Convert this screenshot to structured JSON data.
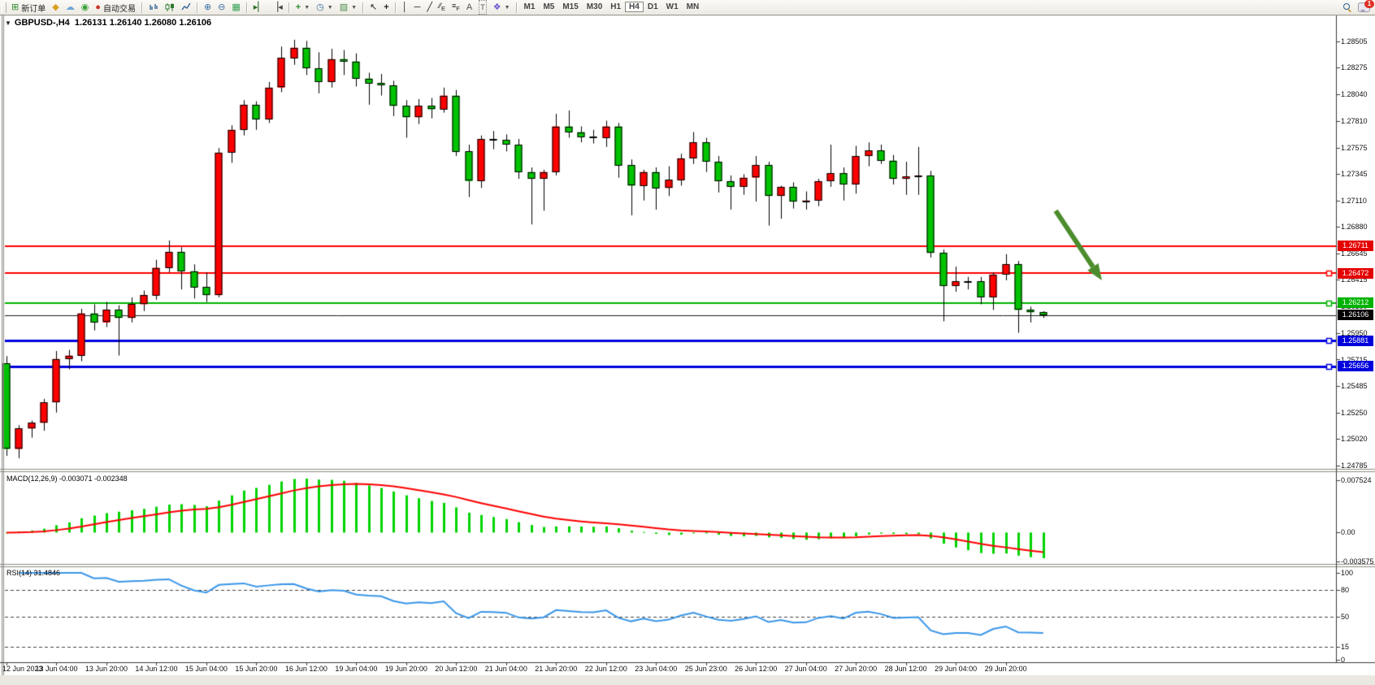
{
  "toolbar": {
    "new_order_label": "新订单",
    "autotrading_label": "自动交易",
    "timeframes": [
      "M1",
      "M5",
      "M15",
      "M30",
      "H1",
      "H4",
      "D1",
      "W1",
      "MN"
    ],
    "active_timeframe": "H4",
    "notification_count": "1"
  },
  "chart": {
    "symbol_title": "GBPUSD-,H4",
    "ohlc_text": "1.26131 1.26140 1.26080 1.26106",
    "background": "#ffffff",
    "bull_color": "#fe0000",
    "bear_color": "#00c300",
    "wick_color": "#000000"
  },
  "price_axis": {
    "ticks": [
      "1.28505",
      "1.28275",
      "1.28040",
      "1.27810",
      "1.27575",
      "1.27345",
      "1.27110",
      "1.26880",
      "1.26645",
      "1.26415",
      "1.26180",
      "1.25950",
      "1.25715",
      "1.25485",
      "1.25250",
      "1.25020",
      "1.24785"
    ],
    "badges": [
      {
        "text": "1.26711",
        "color": "#e40000"
      },
      {
        "text": "1.26472",
        "color": "#e40000"
      },
      {
        "text": "1.26212",
        "color": "#00b300"
      },
      {
        "text": "1.26106",
        "color": "#000000"
      },
      {
        "text": "1.25881",
        "color": "#0000dd"
      },
      {
        "text": "1.25656",
        "color": "#0000dd"
      }
    ]
  },
  "macd_pane": {
    "label": "MACD(12,26,9) -0.003071 -0.002348",
    "scale_labels": [
      {
        "text": "0.007524",
        "value": 0.007524
      },
      {
        "text": "0.00",
        "value": 0
      },
      {
        "text": "-0.003575",
        "value": -0.003575
      }
    ]
  },
  "rsi_pane": {
    "label": "RSI(14) 31.4846",
    "scale_labels": [
      {
        "text": "100",
        "value": 100
      },
      {
        "text": "80",
        "value": 80
      },
      {
        "text": "50",
        "value": 50
      },
      {
        "text": "15",
        "value": 15
      },
      {
        "text": "0",
        "value": 0
      }
    ],
    "levels": [
      80,
      50,
      15
    ]
  },
  "chart_data": {
    "type": "candlestick",
    "symbol": "GBPUSD-",
    "timeframe": "H4",
    "title": "GBPUSD-,H4 1.26131 1.26140 1.26080 1.26106",
    "current_bar": {
      "open": 1.26131,
      "high": 1.2614,
      "low": 1.2608,
      "close": 1.26106
    },
    "price_axis_range": {
      "top": 1.28505,
      "bottom": 1.24785
    },
    "x_labels": [
      "12 Jun 2023",
      "13 Jun 04:00",
      "13 Jun 20:00",
      "14 Jun 12:00",
      "15 Jun 04:00",
      "15 Jun 20:00",
      "16 Jun 12:00",
      "19 Jun 04:00",
      "19 Jun 20:00",
      "20 Jun 12:00",
      "21 Jun 04:00",
      "21 Jun 20:00",
      "22 Jun 12:00",
      "23 Jun 04:00",
      "25 Jun 23:00",
      "26 Jun 12:00",
      "27 Jun 04:00",
      "27 Jun 20:00",
      "28 Jun 12:00",
      "29 Jun 04:00",
      "29 Jun 20:00"
    ],
    "label_every_n_bars": 4,
    "candles_format": [
      "open",
      "high",
      "low",
      "close"
    ],
    "candles": [
      [
        1.2568,
        1.25745,
        1.2487,
        1.2493
      ],
      [
        1.2493,
        1.2514,
        1.2485,
        1.2511
      ],
      [
        1.2511,
        1.2518,
        1.2503,
        1.2516
      ],
      [
        1.2516,
        1.2537,
        1.2509,
        1.2534
      ],
      [
        1.2534,
        1.2579,
        1.2525,
        1.2572
      ],
      [
        1.2572,
        1.258,
        1.2563,
        1.2575
      ],
      [
        1.2575,
        1.2616,
        1.257,
        1.2612
      ],
      [
        1.2612,
        1.262,
        1.2597,
        1.2604
      ],
      [
        1.2604,
        1.2622,
        1.26,
        1.2615
      ],
      [
        1.2615,
        1.2619,
        1.2575,
        1.2608
      ],
      [
        1.2608,
        1.2626,
        1.2604,
        1.262
      ],
      [
        1.262,
        1.2632,
        1.2614,
        1.2628
      ],
      [
        1.2628,
        1.2659,
        1.2624,
        1.2652
      ],
      [
        1.2652,
        1.2676,
        1.2648,
        1.2666
      ],
      [
        1.2666,
        1.267,
        1.2633,
        1.2649
      ],
      [
        1.2649,
        1.2655,
        1.2625,
        1.2635
      ],
      [
        1.2635,
        1.2648,
        1.2622,
        1.2628
      ],
      [
        1.2628,
        1.2757,
        1.2626,
        1.2753
      ],
      [
        1.2753,
        1.2777,
        1.2744,
        1.2773
      ],
      [
        1.2773,
        1.2799,
        1.2768,
        1.2795
      ],
      [
        1.2795,
        1.2798,
        1.2773,
        1.2782
      ],
      [
        1.2782,
        1.2815,
        1.2779,
        1.281
      ],
      [
        1.281,
        1.2846,
        1.2806,
        1.2836
      ],
      [
        1.2836,
        1.2852,
        1.283,
        1.2845
      ],
      [
        1.2845,
        1.2851,
        1.2821,
        1.2827
      ],
      [
        1.2827,
        1.2841,
        1.2805,
        1.2815
      ],
      [
        1.2815,
        1.2844,
        1.281,
        1.2835
      ],
      [
        1.2835,
        1.2843,
        1.2821,
        1.2833
      ],
      [
        1.2833,
        1.284,
        1.2811,
        1.2818
      ],
      [
        1.2818,
        1.2823,
        1.2795,
        1.2814
      ],
      [
        1.2814,
        1.2822,
        1.2803,
        1.2812
      ],
      [
        1.2812,
        1.2816,
        1.2785,
        1.2794
      ],
      [
        1.2794,
        1.2799,
        1.2766,
        1.2784
      ],
      [
        1.2784,
        1.28,
        1.2778,
        1.2794
      ],
      [
        1.2794,
        1.2801,
        1.2783,
        1.2791
      ],
      [
        1.2791,
        1.281,
        1.2788,
        1.2803
      ],
      [
        1.2803,
        1.2808,
        1.275,
        1.2754
      ],
      [
        1.2754,
        1.276,
        1.2714,
        1.2728
      ],
      [
        1.2728,
        1.2768,
        1.2722,
        1.2765
      ],
      [
        1.2765,
        1.2772,
        1.2756,
        1.2764
      ],
      [
        1.2764,
        1.2769,
        1.2754,
        1.276
      ],
      [
        1.276,
        1.2765,
        1.273,
        1.2736
      ],
      [
        1.2736,
        1.274,
        1.269,
        1.273
      ],
      [
        1.273,
        1.2738,
        1.2702,
        1.2736
      ],
      [
        1.2736,
        1.2787,
        1.2733,
        1.2776
      ],
      [
        1.2776,
        1.279,
        1.2766,
        1.2771
      ],
      [
        1.2771,
        1.2776,
        1.2762,
        1.2767
      ],
      [
        1.2767,
        1.2773,
        1.2761,
        1.2766
      ],
      [
        1.2766,
        1.2781,
        1.2758,
        1.2776
      ],
      [
        1.2776,
        1.2779,
        1.2731,
        1.2742
      ],
      [
        1.2742,
        1.2747,
        1.2698,
        1.2724
      ],
      [
        1.2724,
        1.2738,
        1.2711,
        1.2736
      ],
      [
        1.2736,
        1.274,
        1.2703,
        1.2722
      ],
      [
        1.2722,
        1.2741,
        1.2715,
        1.2729
      ],
      [
        1.2729,
        1.2752,
        1.2724,
        1.2748
      ],
      [
        1.2748,
        1.2771,
        1.2743,
        1.2762
      ],
      [
        1.2762,
        1.2766,
        1.2736,
        1.2745
      ],
      [
        1.2745,
        1.275,
        1.2718,
        1.2728
      ],
      [
        1.2728,
        1.2733,
        1.2703,
        1.2723
      ],
      [
        1.2723,
        1.2734,
        1.2716,
        1.2731
      ],
      [
        1.2731,
        1.275,
        1.271,
        1.2742
      ],
      [
        1.2742,
        1.2745,
        1.2689,
        1.2715
      ],
      [
        1.2715,
        1.2724,
        1.2695,
        1.2723
      ],
      [
        1.2723,
        1.2727,
        1.2704,
        1.271
      ],
      [
        1.271,
        1.2719,
        1.2703,
        1.2711
      ],
      [
        1.2711,
        1.273,
        1.2706,
        1.2728
      ],
      [
        1.2728,
        1.276,
        1.2723,
        1.2735
      ],
      [
        1.2735,
        1.274,
        1.2711,
        1.2725
      ],
      [
        1.2725,
        1.2759,
        1.2717,
        1.275
      ],
      [
        1.275,
        1.2762,
        1.2741,
        1.2755
      ],
      [
        1.2755,
        1.276,
        1.2743,
        1.2746
      ],
      [
        1.2746,
        1.2751,
        1.2725,
        1.273
      ],
      [
        1.273,
        1.2745,
        1.2716,
        1.2732
      ],
      [
        1.2732,
        1.2758,
        1.2716,
        1.2733
      ],
      [
        1.2733,
        1.2737,
        1.2661,
        1.2665
      ],
      [
        1.2665,
        1.2668,
        1.2605,
        1.2636
      ],
      [
        1.2636,
        1.2653,
        1.2631,
        1.264
      ],
      [
        1.264,
        1.2644,
        1.2633,
        1.264
      ],
      [
        1.264,
        1.2644,
        1.262,
        1.2626
      ],
      [
        1.2626,
        1.2648,
        1.2615,
        1.2646
      ],
      [
        1.2646,
        1.2664,
        1.2641,
        1.2655
      ],
      [
        1.2655,
        1.2658,
        1.2595,
        1.2615
      ],
      [
        1.2615,
        1.2618,
        1.2604,
        1.2613
      ],
      [
        1.26131,
        1.2614,
        1.2608,
        1.26106
      ]
    ],
    "hlines": [
      {
        "price": 1.26711,
        "color": "#ff0000",
        "width": 2,
        "handle": false
      },
      {
        "price": 1.26472,
        "color": "#ff0000",
        "width": 2,
        "handle": true
      },
      {
        "price": 1.26212,
        "color": "#00b300",
        "width": 2,
        "handle": true
      },
      {
        "price": 1.26106,
        "color": "#1c1c1c",
        "width": 1,
        "handle": false,
        "style": "current-price-line"
      },
      {
        "price": 1.25881,
        "color": "#0000e0",
        "width": 3,
        "handle": true
      },
      {
        "price": 1.25656,
        "color": "#0000e0",
        "width": 3,
        "handle": true
      }
    ],
    "arrow_annotation": {
      "from_bar": 84,
      "from_price": 1.2702,
      "to_bar": 87.7,
      "to_price": 1.2641,
      "color": "#4b8c2c"
    },
    "indicators": [
      {
        "name": "MACD",
        "params": [
          12,
          26,
          9
        ],
        "values_text": [
          "-0.003071",
          "-0.002348"
        ],
        "histogram_color": "#00d400",
        "signal_color": "#ff0000",
        "scale_max": 0.007524,
        "scale_min": -0.003575
      },
      {
        "name": "RSI",
        "params": [
          14
        ],
        "value_text": "31.4846",
        "line_color": "#3a96e8",
        "levels": [
          80,
          50,
          15
        ],
        "range": [
          0,
          100
        ]
      }
    ]
  }
}
